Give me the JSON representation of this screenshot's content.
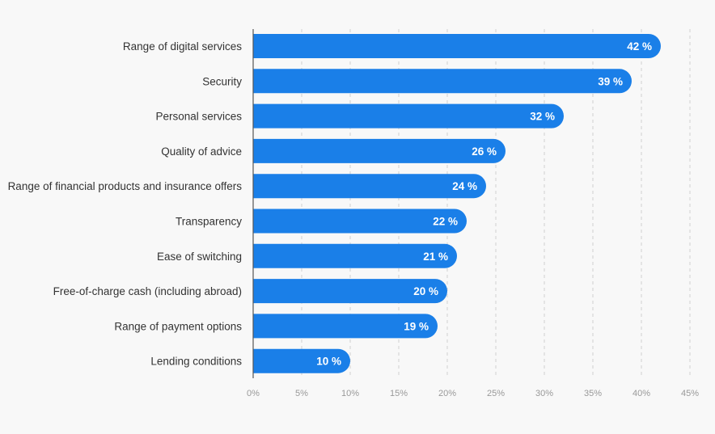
{
  "chart_data": {
    "type": "bar",
    "orientation": "horizontal",
    "categories": [
      "Range of digital services",
      "Security",
      "Personal services",
      "Quality of advice",
      "Range of financial products and insurance offers",
      "Transparency",
      "Ease of switching",
      "Free-of-charge cash (including abroad)",
      "Range of payment options",
      "Lending conditions"
    ],
    "values": [
      42,
      39,
      32,
      26,
      24,
      22,
      21,
      20,
      19,
      10
    ],
    "value_labels": [
      "42 %",
      "39 %",
      "32 %",
      "26 %",
      "24 %",
      "22 %",
      "21 %",
      "20 %",
      "19 %",
      "10 %"
    ],
    "xlim": [
      0,
      45
    ],
    "x_ticks": [
      0,
      5,
      10,
      15,
      20,
      25,
      30,
      35,
      40,
      45
    ],
    "x_tick_labels": [
      "0%",
      "5%",
      "10%",
      "15%",
      "20%",
      "25%",
      "30%",
      "35%",
      "40%",
      "45%"
    ],
    "grid": true,
    "grid_style": "dashed-vertical",
    "title": "",
    "xlabel": "",
    "ylabel": "",
    "colors": {
      "bar": "#1a7fe8",
      "background": "#f8f8f8",
      "grid": "#d0d0d0",
      "axis": "#555555",
      "category_text": "#333333",
      "value_text": "#ffffff",
      "tick_text": "#999999"
    }
  }
}
